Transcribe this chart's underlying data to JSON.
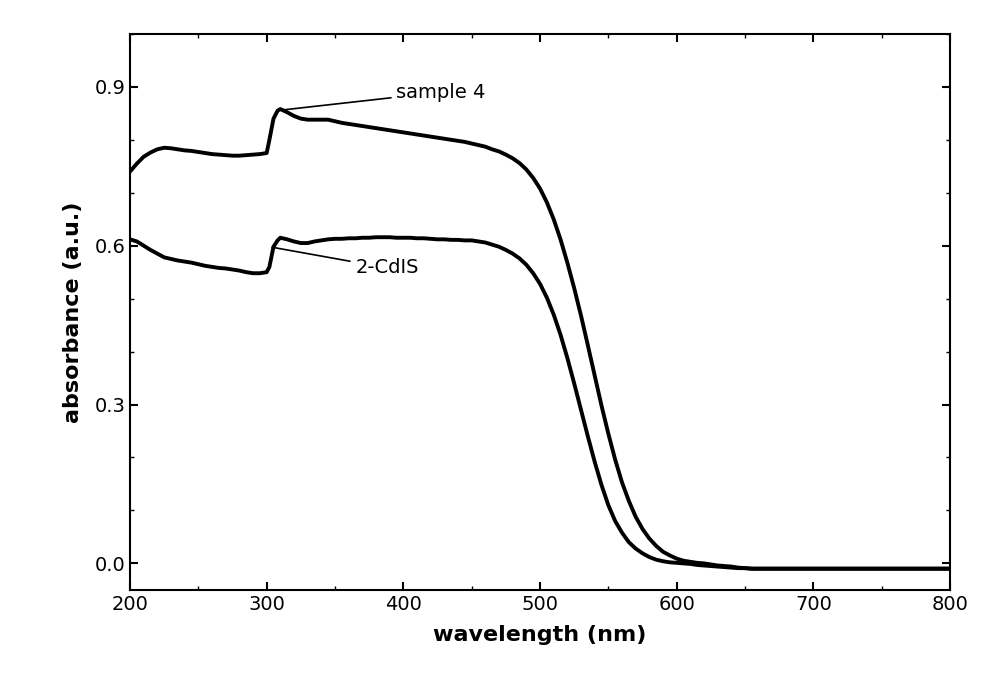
{
  "xlabel": "wavelength (nm)",
  "ylabel": "absorbance (a.u.)",
  "xlim": [
    200,
    800
  ],
  "ylim": [
    -0.05,
    1.0
  ],
  "yticks": [
    0.0,
    0.3,
    0.6,
    0.9
  ],
  "xticks": [
    200,
    300,
    400,
    500,
    600,
    700,
    800
  ],
  "bg_color": "#ffffff",
  "line_color": "#000000",
  "linewidth": 2.8,
  "annotation_sample4": "sample 4",
  "annotation_cdis": "2-CdIS",
  "sample4_x": [
    200,
    205,
    210,
    215,
    220,
    225,
    230,
    235,
    240,
    245,
    250,
    255,
    260,
    265,
    270,
    275,
    280,
    285,
    290,
    295,
    300,
    302,
    305,
    308,
    310,
    315,
    320,
    325,
    330,
    335,
    340,
    345,
    350,
    355,
    360,
    365,
    370,
    375,
    380,
    385,
    390,
    395,
    400,
    405,
    410,
    415,
    420,
    425,
    430,
    435,
    440,
    445,
    450,
    455,
    460,
    465,
    470,
    475,
    480,
    485,
    490,
    495,
    500,
    505,
    510,
    515,
    520,
    525,
    530,
    535,
    540,
    545,
    550,
    555,
    560,
    565,
    570,
    575,
    580,
    585,
    590,
    595,
    600,
    605,
    610,
    615,
    620,
    625,
    630,
    635,
    640,
    645,
    650,
    655,
    660,
    665,
    670,
    675,
    680,
    685,
    690,
    695,
    700,
    705,
    710,
    715,
    720,
    725,
    730,
    735,
    740,
    745,
    750,
    755,
    760,
    765,
    770,
    775,
    780,
    785,
    790,
    795,
    800
  ],
  "sample4_y": [
    0.74,
    0.755,
    0.768,
    0.776,
    0.782,
    0.785,
    0.784,
    0.782,
    0.78,
    0.779,
    0.777,
    0.775,
    0.773,
    0.772,
    0.771,
    0.77,
    0.77,
    0.771,
    0.772,
    0.773,
    0.775,
    0.8,
    0.84,
    0.855,
    0.858,
    0.852,
    0.845,
    0.84,
    0.838,
    0.838,
    0.838,
    0.838,
    0.835,
    0.832,
    0.83,
    0.828,
    0.826,
    0.824,
    0.822,
    0.82,
    0.818,
    0.816,
    0.814,
    0.812,
    0.81,
    0.808,
    0.806,
    0.804,
    0.802,
    0.8,
    0.798,
    0.796,
    0.793,
    0.79,
    0.787,
    0.782,
    0.778,
    0.772,
    0.765,
    0.756,
    0.744,
    0.728,
    0.708,
    0.682,
    0.65,
    0.612,
    0.568,
    0.52,
    0.468,
    0.412,
    0.355,
    0.298,
    0.245,
    0.196,
    0.153,
    0.118,
    0.088,
    0.065,
    0.047,
    0.033,
    0.022,
    0.015,
    0.009,
    0.005,
    0.003,
    0.001,
    0.0,
    -0.002,
    -0.004,
    -0.005,
    -0.006,
    -0.008,
    -0.009,
    -0.01,
    -0.01,
    -0.01,
    -0.01,
    -0.01,
    -0.01,
    -0.01,
    -0.01,
    -0.01,
    -0.01,
    -0.01,
    -0.01,
    -0.01,
    -0.01,
    -0.01,
    -0.01,
    -0.01,
    -0.01,
    -0.01,
    -0.01,
    -0.01,
    -0.01,
    -0.01,
    -0.01,
    -0.01,
    -0.01,
    -0.01,
    -0.01,
    -0.01,
    -0.01
  ],
  "cdis_x": [
    200,
    205,
    210,
    215,
    220,
    225,
    230,
    235,
    240,
    245,
    250,
    255,
    260,
    265,
    270,
    275,
    280,
    285,
    290,
    295,
    300,
    302,
    305,
    308,
    310,
    315,
    320,
    325,
    330,
    335,
    340,
    345,
    350,
    355,
    360,
    365,
    370,
    375,
    380,
    385,
    390,
    395,
    400,
    405,
    410,
    415,
    420,
    425,
    430,
    435,
    440,
    445,
    450,
    455,
    460,
    465,
    470,
    475,
    480,
    485,
    490,
    495,
    500,
    505,
    510,
    515,
    520,
    525,
    530,
    535,
    540,
    545,
    550,
    555,
    560,
    565,
    570,
    575,
    580,
    585,
    590,
    595,
    600,
    605,
    610,
    615,
    620,
    625,
    630,
    635,
    640,
    645,
    650,
    655,
    660,
    665,
    670,
    675,
    680,
    685,
    690,
    695,
    700,
    705,
    710,
    715,
    720,
    725,
    730,
    735,
    740,
    745,
    750,
    755,
    760,
    765,
    770,
    775,
    780,
    785,
    790,
    795,
    800
  ],
  "cdis_y": [
    0.612,
    0.608,
    0.6,
    0.592,
    0.585,
    0.578,
    0.575,
    0.572,
    0.57,
    0.568,
    0.565,
    0.562,
    0.56,
    0.558,
    0.557,
    0.555,
    0.553,
    0.55,
    0.548,
    0.548,
    0.55,
    0.56,
    0.598,
    0.61,
    0.615,
    0.612,
    0.608,
    0.605,
    0.605,
    0.608,
    0.61,
    0.612,
    0.613,
    0.613,
    0.614,
    0.614,
    0.615,
    0.615,
    0.616,
    0.616,
    0.616,
    0.615,
    0.615,
    0.615,
    0.614,
    0.614,
    0.613,
    0.612,
    0.612,
    0.611,
    0.611,
    0.61,
    0.61,
    0.608,
    0.606,
    0.602,
    0.598,
    0.592,
    0.585,
    0.576,
    0.564,
    0.548,
    0.528,
    0.502,
    0.47,
    0.432,
    0.388,
    0.34,
    0.29,
    0.24,
    0.192,
    0.148,
    0.11,
    0.08,
    0.058,
    0.04,
    0.028,
    0.019,
    0.012,
    0.007,
    0.004,
    0.002,
    0.001,
    0.0,
    -0.001,
    -0.003,
    -0.004,
    -0.005,
    -0.006,
    -0.007,
    -0.008,
    -0.009,
    -0.009,
    -0.01,
    -0.01,
    -0.01,
    -0.01,
    -0.01,
    -0.01,
    -0.01,
    -0.01,
    -0.01,
    -0.01,
    -0.01,
    -0.01,
    -0.01,
    -0.01,
    -0.01,
    -0.01,
    -0.01,
    -0.01,
    -0.01,
    -0.01,
    -0.01,
    -0.01,
    -0.01,
    -0.01,
    -0.01,
    -0.01,
    -0.01,
    -0.01,
    -0.01,
    -0.01
  ]
}
